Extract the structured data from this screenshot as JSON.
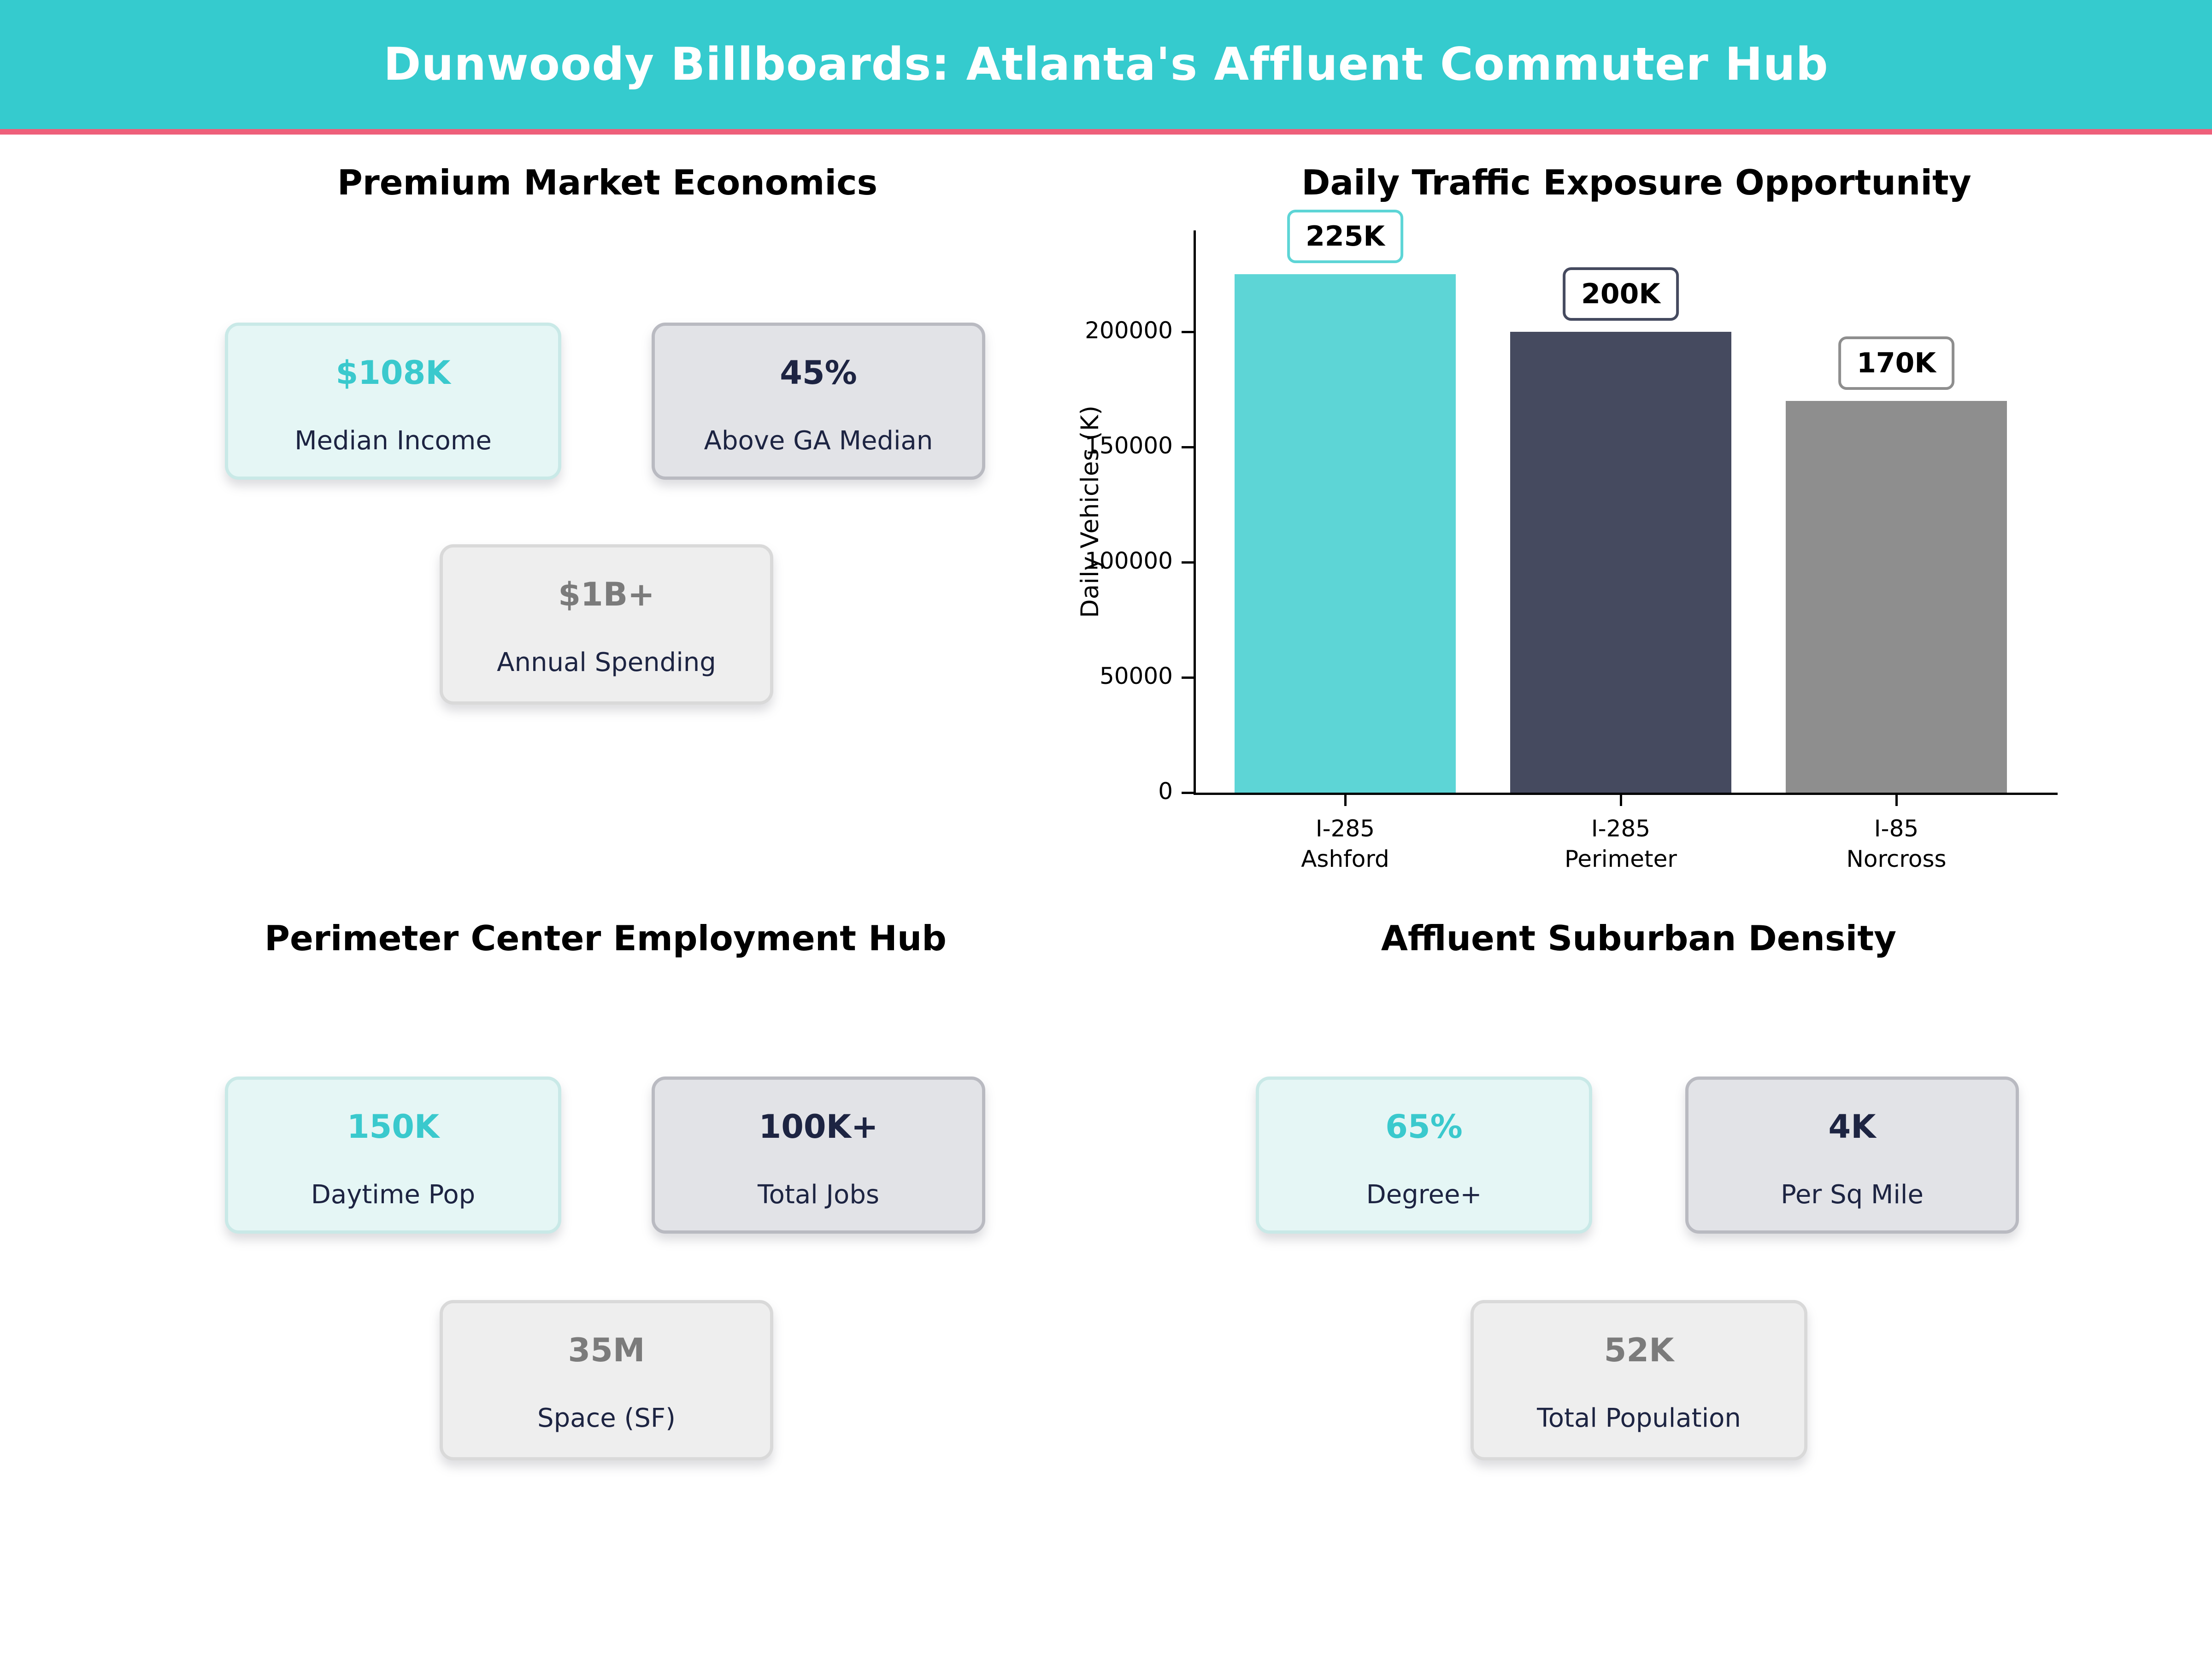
{
  "header": {
    "title": "Dunwoody Billboards: Atlanta's Affluent Commuter Hub"
  },
  "colors": {
    "header_bg": "#35cbce",
    "divider_pink": "#ee5f7a",
    "accent_teal": "#3ac9cd",
    "navy": "#1d2442",
    "bar_teal": "#5dd5d6",
    "bar_navy": "#454a5f",
    "bar_gray": "#8e8e8e"
  },
  "sections": {
    "economics": {
      "title": "Premium Market Economics",
      "cards": [
        {
          "value": "$108K",
          "label": "Median Income",
          "variant": "teal"
        },
        {
          "value": "45%",
          "label": "Above GA Median",
          "variant": "slate"
        },
        {
          "value": "$1B+",
          "label": "Annual Spending",
          "variant": "gray"
        }
      ]
    },
    "employment": {
      "title": "Perimeter Center Employment Hub",
      "cards": [
        {
          "value": "150K",
          "label": "Daytime Pop",
          "variant": "teal"
        },
        {
          "value": "100K+",
          "label": "Total Jobs",
          "variant": "slate"
        },
        {
          "value": "35M",
          "label": "Space (SF)",
          "variant": "gray"
        }
      ]
    },
    "density": {
      "title": "Affluent Suburban Density",
      "cards": [
        {
          "value": "65%",
          "label": "Degree+",
          "variant": "teal"
        },
        {
          "value": "4K",
          "label": "Per Sq Mile",
          "variant": "slate"
        },
        {
          "value": "52K",
          "label": "Total Population",
          "variant": "gray"
        }
      ]
    }
  },
  "chart_data": {
    "type": "bar",
    "title": "Daily Traffic Exposure Opportunity",
    "categories": [
      [
        "I-285",
        "Ashford"
      ],
      [
        "I-285",
        "Perimeter"
      ],
      [
        "I-85",
        "Norcross"
      ]
    ],
    "values": [
      225000,
      200000,
      170000
    ],
    "bar_labels": [
      "225K",
      "200K",
      "170K"
    ],
    "bar_colors": [
      "#5dd5d6",
      "#454a5f",
      "#8e8e8e"
    ],
    "xlabel": "",
    "ylabel": "Daily Vehicles (K)",
    "yticks": [
      0,
      50000,
      100000,
      150000,
      200000
    ],
    "ylim": [
      0,
      244000
    ],
    "grid": false,
    "legend_position": "none"
  }
}
